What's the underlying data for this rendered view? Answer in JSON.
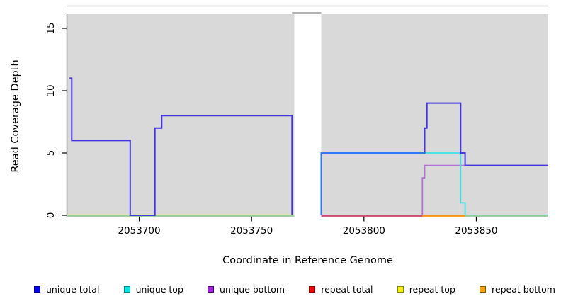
{
  "chart_data": {
    "type": "line",
    "subtype": "step-function coverage plot",
    "title": "",
    "xlabel": "Coordinate in Reference Genome",
    "ylabel": "Read Coverage Depth",
    "xlim": [
      2053668,
      2053882
    ],
    "ylim": [
      0,
      16.8
    ],
    "xticks": [
      2053700,
      2053750,
      2053800,
      2053850
    ],
    "yticks": [
      0,
      5,
      10,
      15
    ],
    "grid": false,
    "legend_position": "bottom",
    "plot_background": {
      "color": "#d9d9d9",
      "regions": [
        {
          "from": 2053668,
          "to": 2053769
        },
        {
          "from": 2053781,
          "to": 2053882
        }
      ],
      "gap": {
        "from": 2053769,
        "to": 2053781
      },
      "top_border_color": "#c2c2c2"
    },
    "offscale_marker": {
      "from": 2053768,
      "to": 2053781,
      "color": "#9a9a9a"
    },
    "series": [
      {
        "name": "unique total",
        "legend_fill": "#0404f0",
        "legend_border": "#00008b",
        "line_color": "#4636e0",
        "paths": [
          [
            [
              2053669,
              11
            ],
            [
              2053670,
              11
            ],
            [
              2053670,
              6
            ],
            [
              2053696,
              6
            ],
            [
              2053696,
              0
            ],
            [
              2053707,
              0
            ],
            [
              2053707,
              7
            ],
            [
              2053710,
              7
            ],
            [
              2053710,
              8
            ],
            [
              2053768,
              8
            ],
            [
              2053768,
              0
            ]
          ],
          [
            [
              2053781,
              0
            ],
            [
              2053781,
              5
            ],
            [
              2053827,
              5
            ],
            [
              2053827,
              7
            ],
            [
              2053828,
              7
            ],
            [
              2053828,
              9
            ],
            [
              2053843,
              9
            ],
            [
              2053843,
              5
            ],
            [
              2053845,
              5
            ],
            [
              2053845,
              4
            ],
            [
              2053882,
              4
            ]
          ]
        ]
      },
      {
        "name": "unique top",
        "legend_fill": "#00e8e8",
        "legend_border": "#008b8b",
        "line_color": "#3fe0e0",
        "paths": [
          [
            [
              2053668,
              0
            ],
            [
              2053768,
              0
            ]
          ],
          [
            [
              2053781,
              0
            ],
            [
              2053781,
              5
            ],
            [
              2053843,
              5
            ],
            [
              2053843,
              1
            ],
            [
              2053845,
              1
            ],
            [
              2053845,
              0
            ],
            [
              2053882,
              0
            ]
          ]
        ]
      },
      {
        "name": "unique bottom",
        "legend_fill": "#a021dd",
        "legend_border": "#4b0a66",
        "line_color": "#b470d6",
        "paths": [
          [
            [
              2053668,
              0
            ],
            [
              2053768,
              0
            ]
          ],
          [
            [
              2053781,
              0
            ],
            [
              2053826,
              0
            ],
            [
              2053826,
              3
            ],
            [
              2053827,
              3
            ],
            [
              2053827,
              4
            ],
            [
              2053882,
              4
            ]
          ]
        ]
      },
      {
        "name": "repeat total",
        "legend_fill": "#f00404",
        "legend_border": "#8b0000",
        "line_color": "#cc4466",
        "paths": [
          [
            [
              2053668,
              0
            ],
            [
              2053768,
              0
            ]
          ],
          [
            [
              2053781,
              0
            ],
            [
              2053882,
              0
            ]
          ]
        ]
      },
      {
        "name": "repeat top",
        "legend_fill": "#f0f000",
        "legend_border": "#8b8b00",
        "line_color": "#e6e6a0",
        "paths": [
          [
            [
              2053668,
              0
            ],
            [
              2053768,
              0
            ]
          ],
          [
            [
              2053781,
              0
            ],
            [
              2053882,
              0
            ]
          ]
        ]
      },
      {
        "name": "repeat bottom",
        "legend_fill": "#f5a00a",
        "legend_border": "#8b5a00",
        "line_color": "#ff9912",
        "paths": [
          [
            [
              2053668,
              0
            ],
            [
              2053768,
              0
            ]
          ],
          [
            [
              2053781,
              0
            ],
            [
              2053882,
              0
            ]
          ]
        ]
      }
    ],
    "overlay_segments": [
      {
        "name": "unique total + unique top overlap",
        "color": "#3379f2",
        "path": [
          [
            2053781,
            0
          ],
          [
            2053781,
            5
          ],
          [
            2053827,
            5
          ]
        ]
      }
    ],
    "baseline_segments": [
      {
        "from": 2053668,
        "to": 2053769,
        "color": "#e6e6a0",
        "lift": 1.7
      },
      {
        "from": 2053668,
        "to": 2053769,
        "color": "#93cb93",
        "lift": 0
      },
      {
        "from": 2053781,
        "to": 2053826,
        "color": "#cc4466",
        "lift": 0
      },
      {
        "from": 2053826,
        "to": 2053845,
        "color": "#ff9912",
        "lift": 0
      },
      {
        "from": 2053845,
        "to": 2053882,
        "color": "#93cb93",
        "lift": 0
      }
    ]
  }
}
